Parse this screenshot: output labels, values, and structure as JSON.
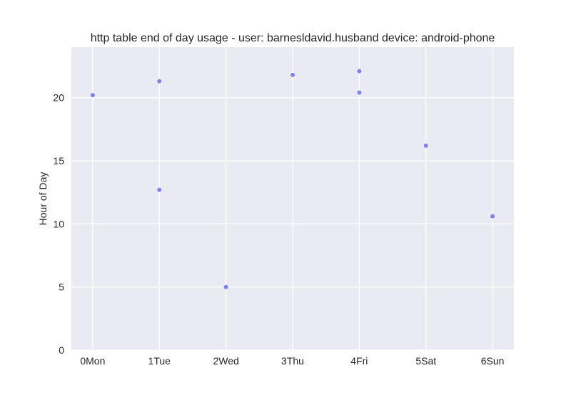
{
  "chart_data": {
    "type": "scatter",
    "title": "http table end of day usage -  user: barnesldavid.husband device: android-phone",
    "xlabel": "",
    "ylabel": "Hour of Day",
    "categories": [
      "0Mon",
      "1Tue",
      "2Wed",
      "3Thu",
      "4Fri",
      "5Sat",
      "6Sun"
    ],
    "xlim": [
      -0.32,
      6.32
    ],
    "ylim": [
      0,
      24
    ],
    "yticks": [
      0,
      5,
      10,
      15,
      20
    ],
    "grid": true,
    "points": [
      {
        "x": 0,
        "y": 20.2
      },
      {
        "x": 1,
        "y": 21.3
      },
      {
        "x": 1,
        "y": 12.7
      },
      {
        "x": 2,
        "y": 5.0
      },
      {
        "x": 3,
        "y": 21.8
      },
      {
        "x": 4,
        "y": 22.1
      },
      {
        "x": 4,
        "y": 20.4
      },
      {
        "x": 5,
        "y": 16.2
      },
      {
        "x": 6,
        "y": 10.6
      }
    ],
    "colors": {
      "background": "#eaeaf2",
      "point": "#6a6ff0",
      "grid": "#ffffff"
    }
  }
}
